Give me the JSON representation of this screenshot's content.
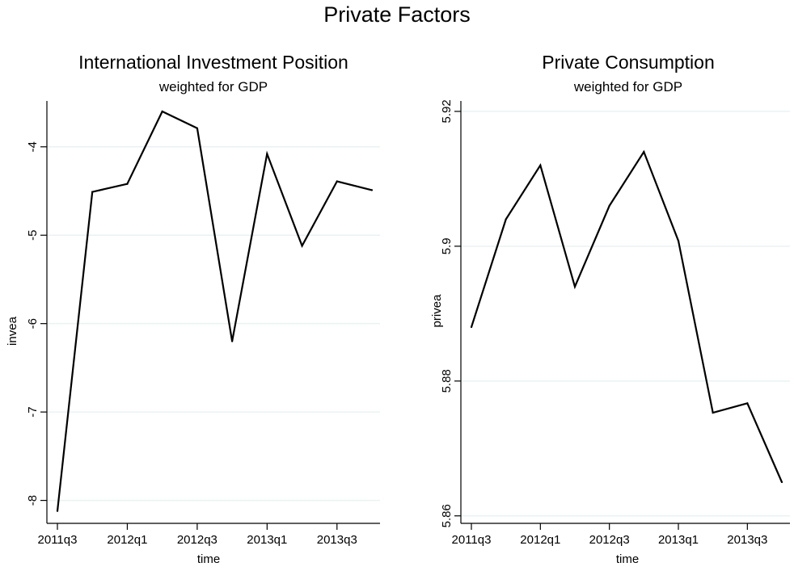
{
  "figure": {
    "title": "Private Factors",
    "colors": {
      "background": "#ffffff",
      "gridline": "#eaf2f3",
      "line": "#000000"
    }
  },
  "chart_data": [
    {
      "type": "line",
      "title": "International Investment Position",
      "subtitle": "weighted for GDP",
      "xlabel": "time",
      "ylabel": "invea",
      "x": [
        "2011q3",
        "2011q4",
        "2012q1",
        "2012q2",
        "2012q3",
        "2012q4",
        "2013q1",
        "2013q2",
        "2013q3",
        "2013q4"
      ],
      "x_tick_labels": [
        "2011q3",
        "2012q1",
        "2012q3",
        "2013q1",
        "2013q3"
      ],
      "y_ticks": [
        -8,
        -7,
        -6,
        -5,
        -4
      ],
      "y_tick_labels": [
        "-8",
        "-7",
        "-6",
        "-5",
        "-4"
      ],
      "ylim": [
        -8.15,
        -3.6
      ],
      "grid": true,
      "series": [
        {
          "values": [
            -8.12,
            -4.51,
            -4.42,
            -3.6,
            -3.79,
            -6.2,
            -4.08,
            -5.12,
            -4.39,
            -4.49
          ]
        }
      ]
    },
    {
      "type": "line",
      "title": "Private Consumption",
      "subtitle": "weighted for GDP",
      "xlabel": "time",
      "ylabel": "privea",
      "x": [
        "2011q3",
        "2011q4",
        "2012q1",
        "2012q2",
        "2012q3",
        "2012q4",
        "2013q1",
        "2013q2",
        "2013q3",
        "2013q4"
      ],
      "x_tick_labels": [
        "2011q3",
        "2012q1",
        "2012q3",
        "2013q1",
        "2013q3"
      ],
      "y_ticks": [
        5.86,
        5.88,
        5.9,
        5.92
      ],
      "y_tick_labels": [
        "5.86",
        "5.88",
        "5.9",
        "5.92"
      ],
      "ylim": [
        5.865,
        5.914
      ],
      "grid": true,
      "series": [
        {
          "values": [
            5.888,
            5.904,
            5.912,
            5.894,
            5.906,
            5.914,
            5.9008,
            5.8753,
            5.8767,
            5.865
          ]
        }
      ]
    }
  ]
}
